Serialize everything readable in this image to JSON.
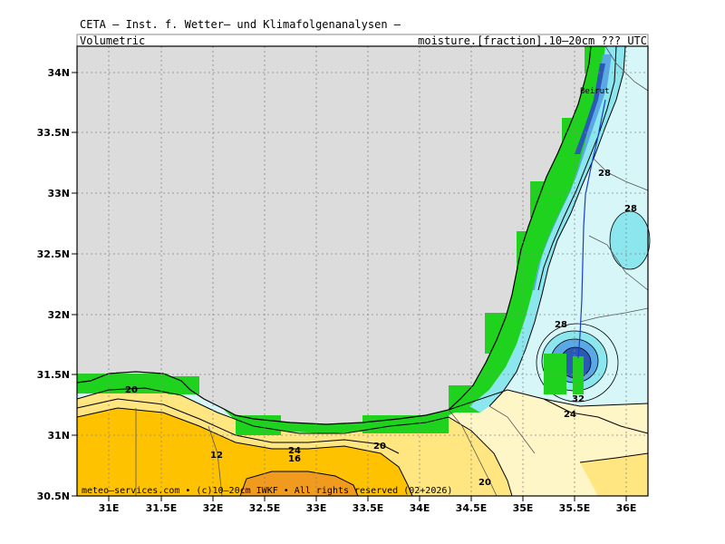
{
  "header": {
    "title": "CETA — Inst. f. Wetter— und Klimafolgenanalysen —",
    "left_label": "Volumetric",
    "right_label": "moisture.[fraction].10—20cm ??? UTC"
  },
  "axes": {
    "lat_labels": [
      "34N",
      "33.5N",
      "33N",
      "32.5N",
      "32N",
      "31.5N",
      "31N",
      "30.5N"
    ],
    "lon_labels": [
      "31E",
      "31.5E",
      "32E",
      "32.5E",
      "33E",
      "33.5E",
      "34E",
      "34.5E",
      "35E",
      "35.5E",
      "36E"
    ]
  },
  "contour_labels": [
    "20",
    "12",
    "24",
    "16",
    "20",
    "20",
    "28",
    "28",
    "28",
    "32",
    "24"
  ],
  "places": {
    "beirut": "Beirut"
  },
  "footer": "meteo—services.com • (c)10—20cm IWKF • All rights reserved (02+2026)",
  "colors": {
    "sea": "#dcdcdc",
    "light_cyan": "#d6f6f8",
    "cyan": "#8be6ee",
    "blue": "#5aa8e6",
    "dark_blue": "#2a5ab4",
    "green": "#1ed21e",
    "light_yellow": "#fff6c8",
    "yellow": "#ffe680",
    "orange": "#ffc200",
    "dark_orange": "#f09a1e"
  }
}
